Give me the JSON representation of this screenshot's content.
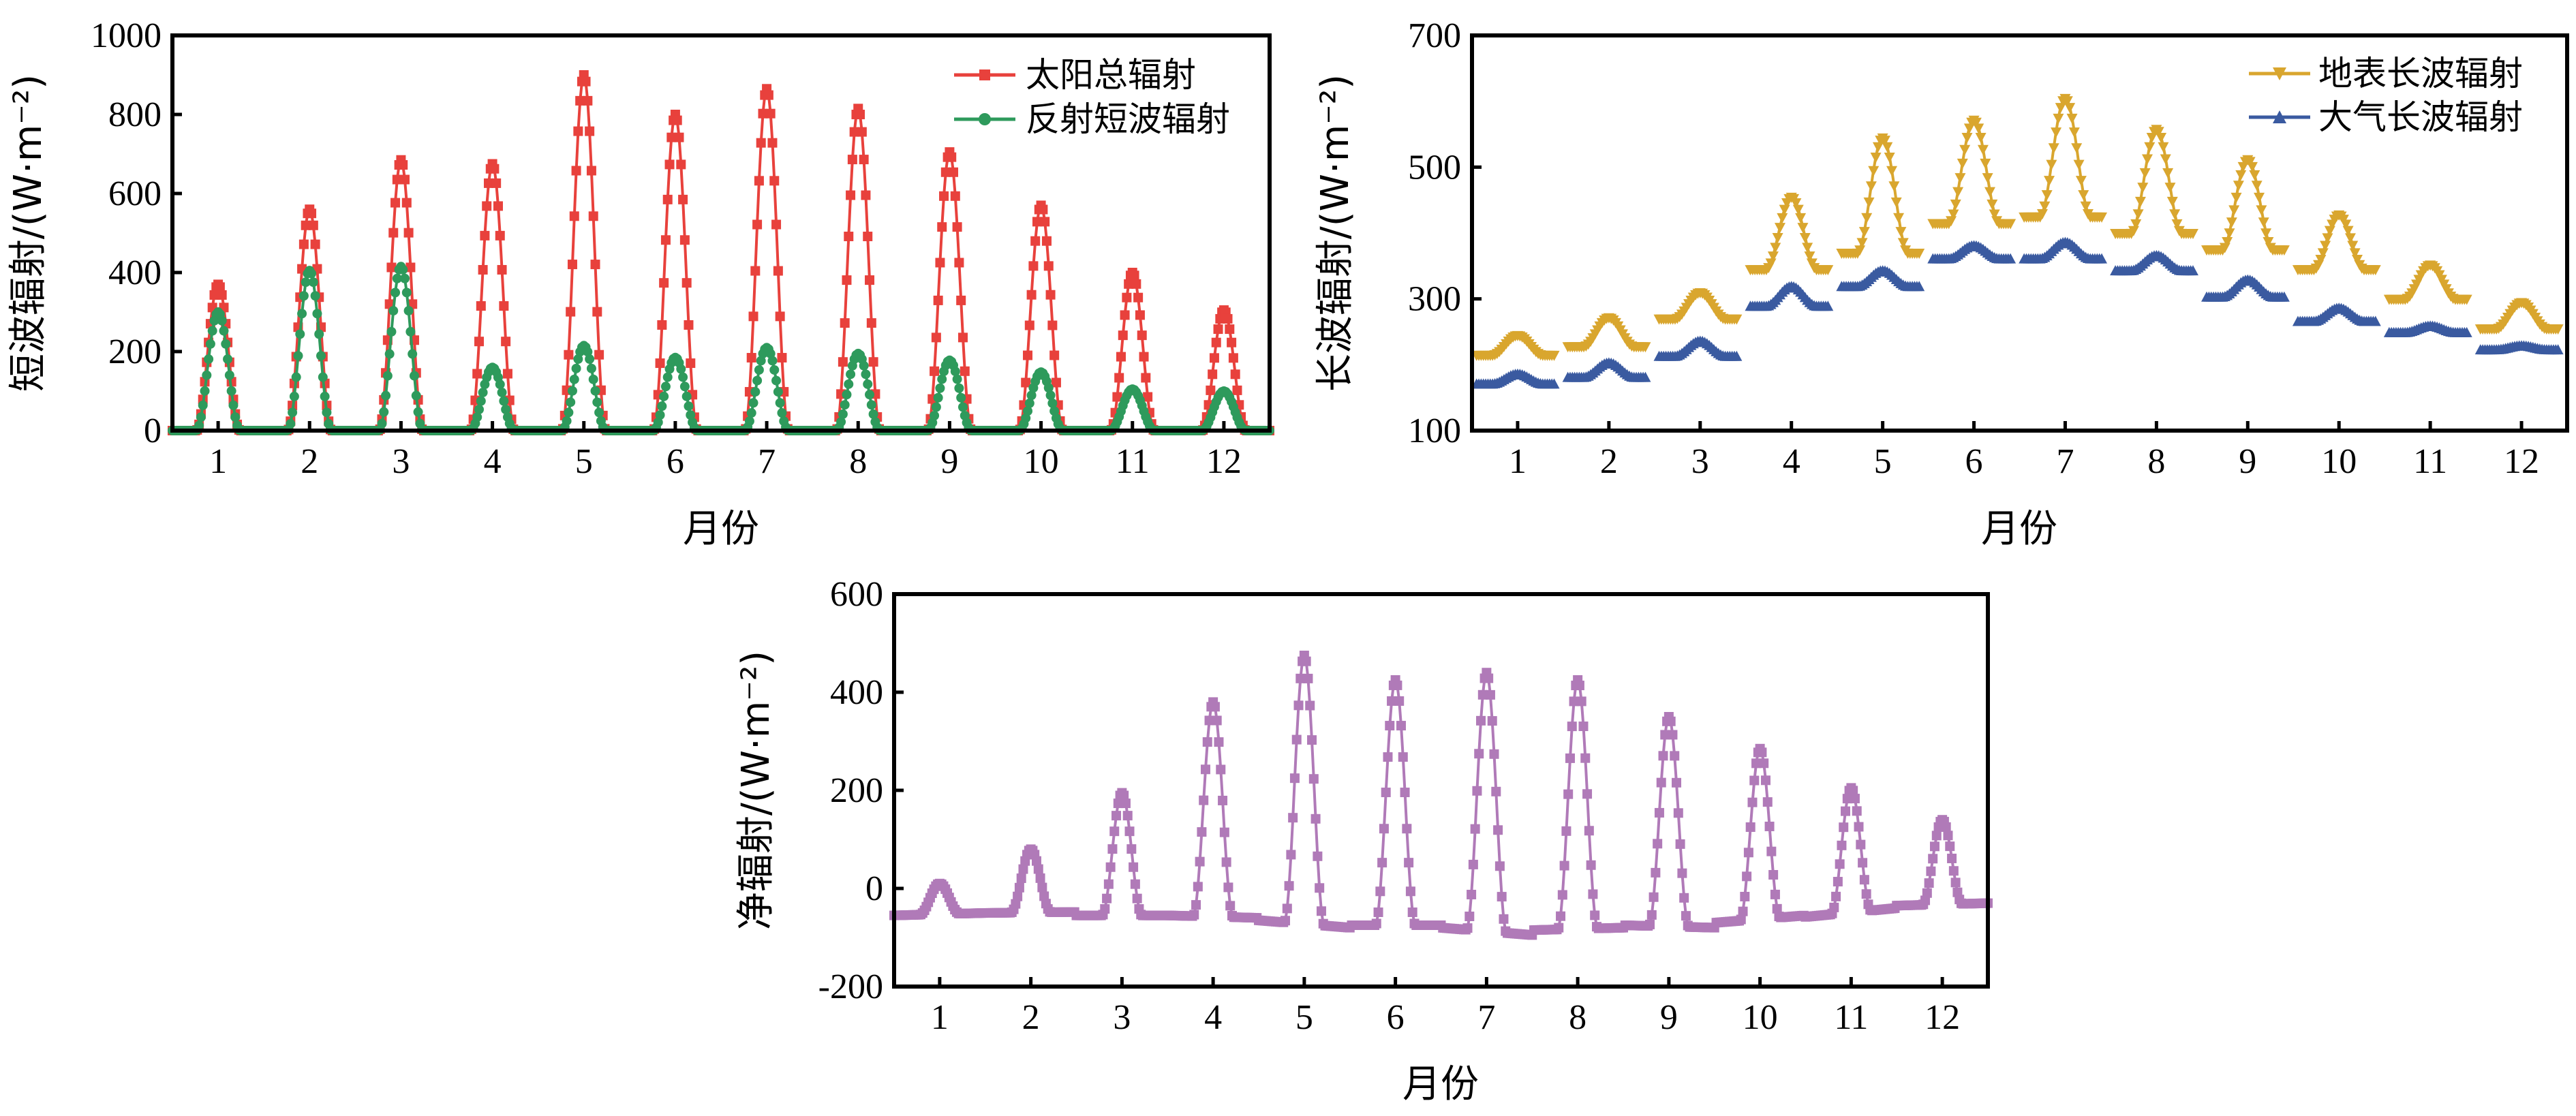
{
  "chart_data": [
    {
      "type": "line",
      "xlabel": "月份",
      "ylabel": "短波辐射/(W·m⁻²)",
      "xticks": [
        "1",
        "2",
        "3",
        "4",
        "5",
        "6",
        "7",
        "8",
        "9",
        "10",
        "11",
        "12"
      ],
      "xlim": [
        0.5,
        12.5
      ],
      "ylim": [
        0,
        1000
      ],
      "yticks": [
        0,
        200,
        400,
        600,
        800,
        1000
      ],
      "grid": false,
      "legend_position": "top-right",
      "series": [
        {
          "name": "太阳总辐射",
          "color": "#e8413c",
          "marker": "square",
          "daily_peak": [
            370,
            560,
            685,
            675,
            900,
            800,
            865,
            815,
            705,
            570,
            400,
            305
          ]
        },
        {
          "name": "反射短波辐射",
          "color": "#2e9a5c",
          "marker": "circle",
          "daily_peak": [
            300,
            405,
            415,
            160,
            215,
            185,
            210,
            195,
            178,
            148,
            105,
            100
          ]
        }
      ]
    },
    {
      "type": "line",
      "xlabel": "月份",
      "ylabel": "长波辐射/(W·m⁻²)",
      "xticks": [
        "1",
        "2",
        "3",
        "4",
        "5",
        "6",
        "7",
        "8",
        "9",
        "10",
        "11",
        "12"
      ],
      "xlim": [
        0.5,
        12.5
      ],
      "ylim": [
        100,
        700
      ],
      "yticks": [
        100,
        300,
        500,
        700
      ],
      "grid": false,
      "legend_position": "top-right",
      "series": [
        {
          "name": "地表长波辐射",
          "color": "#d9a62e",
          "marker": "triangle-down",
          "daily_min": [
            215,
            228,
            270,
            345,
            370,
            415,
            425,
            400,
            375,
            345,
            300,
            255
          ],
          "daily_max": [
            245,
            272,
            310,
            455,
            545,
            572,
            605,
            558,
            512,
            428,
            352,
            295
          ]
        },
        {
          "name": "大气长波辐射",
          "color": "#3a5aa0",
          "marker": "triangle-up",
          "daily_min": [
            170,
            180,
            212,
            288,
            318,
            360,
            360,
            342,
            302,
            265,
            248,
            222
          ],
          "daily_max": [
            185,
            202,
            235,
            318,
            342,
            380,
            385,
            365,
            328,
            285,
            258,
            228
          ]
        }
      ]
    },
    {
      "type": "line",
      "xlabel": "月份",
      "ylabel": "净辐射/(W·m⁻²)",
      "xticks": [
        "1",
        "2",
        "3",
        "4",
        "5",
        "6",
        "7",
        "8",
        "9",
        "10",
        "11",
        "12"
      ],
      "xlim": [
        0.5,
        12.5
      ],
      "ylim": [
        -200,
        600
      ],
      "yticks": [
        -200,
        0,
        200,
        400,
        600
      ],
      "grid": false,
      "series": [
        {
          "name": "",
          "color": "#b07ab8",
          "marker": "square",
          "daily_peak": [
            10,
            80,
            195,
            380,
            475,
            425,
            440,
            425,
            350,
            285,
            205,
            140
          ],
          "night_start": [
            -55,
            -50,
            -55,
            -55,
            -65,
            -75,
            -80,
            -85,
            -75,
            -70,
            -58,
            -35
          ],
          "night_end": [
            -50,
            -48,
            -55,
            -60,
            -80,
            -75,
            -95,
            -80,
            -80,
            -55,
            -40,
            -30
          ]
        }
      ]
    }
  ]
}
